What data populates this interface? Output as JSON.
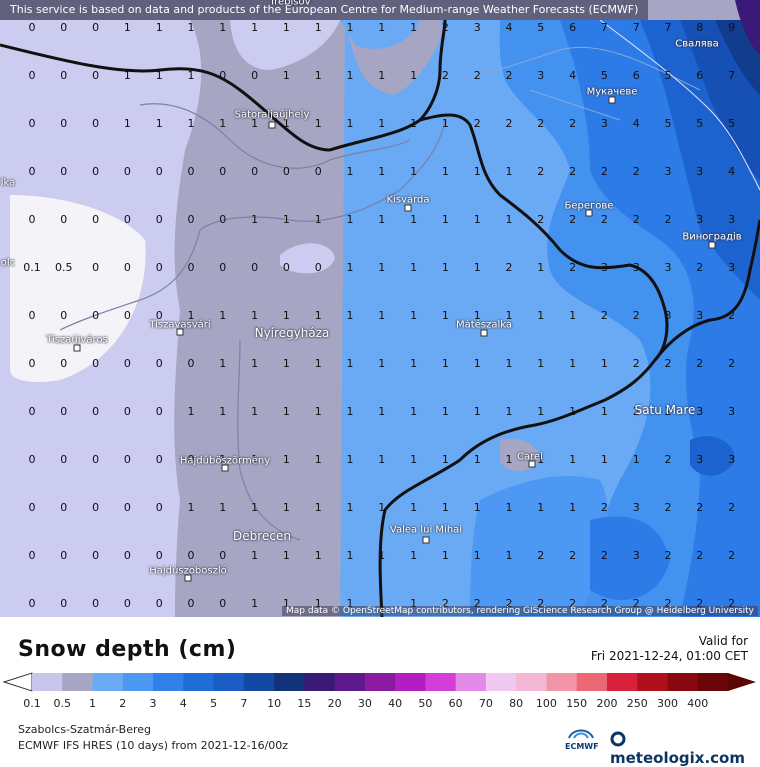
{
  "banner": "This service is based on data and products of the European Centre for Medium-range Weather Forecasts (ECMWF)",
  "credit": "Map data © OpenStreetMap contributors, rendering GIScience Research Group @ Heidelberg University",
  "title": "Snow depth (cm)",
  "valid_label": "Valid for",
  "valid_time": "Fri 2021-12-24, 01:00 CET",
  "region": "Szabolcs-Szatmár-Bereg",
  "model": "ECMWF IFS HRES (10 days) from  2021-12-16/00z",
  "ecmwf_logo": "ECMWF",
  "meteologix_logo": "meteologix.com",
  "colors": {
    "c0": "#f4f4f8",
    "c01": "#ccccf0",
    "c05": "#a6a6c4",
    "c1": "#6aaaf5",
    "c2": "#4392f0",
    "c3": "#2d7be6",
    "c4": "#1c63d0",
    "c5": "#1650b4",
    "c7": "#123c8e",
    "c10": "#0f2c6c"
  },
  "legend": {
    "ticks": [
      "0.1",
      "0.5",
      "1",
      "2",
      "3",
      "4",
      "5",
      "7",
      "10",
      "15",
      "20",
      "30",
      "40",
      "50",
      "60",
      "70",
      "80",
      "100",
      "150",
      "200",
      "250",
      "300",
      "400"
    ],
    "colors": [
      "#c7c7ee",
      "#a6a6c4",
      "#6aaaf5",
      "#4d98f2",
      "#2f80ea",
      "#1e6ed9",
      "#1a5cc4",
      "#1449a3",
      "#12327a",
      "#3a1a78",
      "#5c1a8a",
      "#8a1aa0",
      "#b31ec2",
      "#d43ed8",
      "#e38ae8",
      "#f0c8f0",
      "#f5b8d4",
      "#f295a8",
      "#ec6874",
      "#d8203a",
      "#b0101c",
      "#8a0810",
      "#6a0608"
    ]
  },
  "cities": [
    {
      "name": "Sátoraljaújhely",
      "cls": ""
    },
    {
      "name": "Kisvárda",
      "cls": ""
    },
    {
      "name": "Tiszavasvári",
      "cls": ""
    },
    {
      "name": "Nyíregyháza",
      "cls": "big"
    },
    {
      "name": "Tiszaújváros",
      "cls": ""
    },
    {
      "name": "Hajdúböszörmény",
      "cls": ""
    },
    {
      "name": "Debrecen",
      "cls": "big"
    },
    {
      "name": "Hajdúszoboszló",
      "cls": ""
    },
    {
      "name": "Mátészalka",
      "cls": ""
    },
    {
      "name": "Carei",
      "cls": ""
    },
    {
      "name": "Valea lui Mihai",
      "cls": ""
    },
    {
      "name": "Satu Mare",
      "cls": "big"
    },
    {
      "name": "Мукачеве",
      "cls": ""
    },
    {
      "name": "Берегове",
      "cls": ""
    },
    {
      "name": "Виноградів",
      "cls": ""
    },
    {
      "name": "Свалява",
      "cls": ""
    },
    {
      "name": "Trebišov",
      "cls": ""
    },
    {
      "name": "lka",
      "cls": ""
    },
    {
      "name": "olc",
      "cls": ""
    }
  ],
  "grid_values": [
    [
      "0",
      "0",
      "0",
      "1",
      "1",
      "1",
      "1",
      "1",
      "1",
      "1",
      "1",
      "1",
      "1",
      "2",
      "3",
      "4",
      "5",
      "6",
      "7",
      "7",
      "7",
      "8",
      "9"
    ],
    [
      "0",
      "0",
      "0",
      "1",
      "1",
      "1",
      "0",
      "0",
      "1",
      "1",
      "1",
      "1",
      "1",
      "2",
      "2",
      "2",
      "3",
      "4",
      "5",
      "6",
      "5",
      "6",
      "7"
    ],
    [
      "0",
      "0",
      "0",
      "1",
      "1",
      "1",
      "1",
      "1",
      "1",
      "1",
      "1",
      "1",
      "1",
      "1",
      "2",
      "2",
      "2",
      "2",
      "3",
      "4",
      "5",
      "5",
      "5"
    ],
    [
      "0",
      "0",
      "0",
      "0",
      "0",
      "0",
      "0",
      "0",
      "0",
      "0",
      "1",
      "1",
      "1",
      "1",
      "1",
      "1",
      "2",
      "2",
      "2",
      "2",
      "3",
      "3",
      "4"
    ],
    [
      "0",
      "0",
      "0",
      "0",
      "0",
      "0",
      "0",
      "1",
      "1",
      "1",
      "1",
      "1",
      "1",
      "1",
      "1",
      "1",
      "2",
      "2",
      "2",
      "2",
      "2",
      "3",
      "3"
    ],
    [
      "0.1",
      "0.5",
      "0",
      "0",
      "0",
      "0",
      "0",
      "0",
      "0",
      "0",
      "1",
      "1",
      "1",
      "1",
      "1",
      "2",
      "1",
      "2",
      "3",
      "3",
      "3",
      "2",
      "3"
    ],
    [
      "0",
      "0",
      "0",
      "0",
      "0",
      "1",
      "1",
      "1",
      "1",
      "1",
      "1",
      "1",
      "1",
      "1",
      "1",
      "1",
      "1",
      "1",
      "2",
      "2",
      "3",
      "3",
      "2"
    ],
    [
      "0",
      "0",
      "0",
      "0",
      "0",
      "0",
      "1",
      "1",
      "1",
      "1",
      "1",
      "1",
      "1",
      "1",
      "1",
      "1",
      "1",
      "1",
      "1",
      "2",
      "2",
      "2",
      "2"
    ],
    [
      "0",
      "0",
      "0",
      "0",
      "0",
      "1",
      "1",
      "1",
      "1",
      "1",
      "1",
      "1",
      "1",
      "1",
      "1",
      "1",
      "1",
      "1",
      "1",
      "2",
      "2",
      "3",
      "3"
    ],
    [
      "0",
      "0",
      "0",
      "0",
      "0",
      "0",
      "1",
      "1",
      "1",
      "1",
      "1",
      "1",
      "1",
      "1",
      "1",
      "1",
      "1",
      "1",
      "1",
      "1",
      "2",
      "3",
      "3"
    ],
    [
      "0",
      "0",
      "0",
      "0",
      "0",
      "1",
      "1",
      "1",
      "1",
      "1",
      "1",
      "1",
      "1",
      "1",
      "1",
      "1",
      "1",
      "1",
      "2",
      "3",
      "2",
      "2",
      "2"
    ],
    [
      "0",
      "0",
      "0",
      "0",
      "0",
      "0",
      "0",
      "1",
      "1",
      "1",
      "1",
      "1",
      "1",
      "1",
      "1",
      "1",
      "2",
      "2",
      "2",
      "3",
      "2",
      "2",
      "2"
    ],
    [
      "0",
      "0",
      "0",
      "0",
      "0",
      "0",
      "0",
      "1",
      "1",
      "1",
      "1",
      "1",
      "1",
      "2",
      "2",
      "2",
      "2",
      "2",
      "2",
      "2",
      "2",
      "2",
      "2"
    ]
  ]
}
